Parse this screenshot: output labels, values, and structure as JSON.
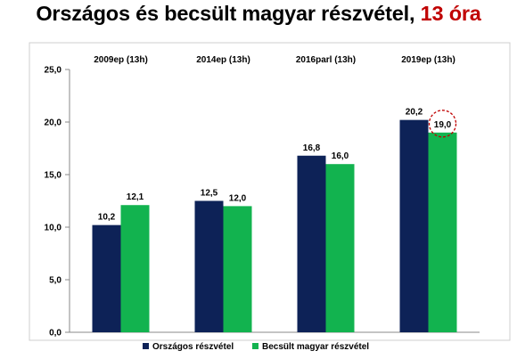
{
  "title": {
    "main": "Országos és becsült magyar részvétel,",
    "highlight": "13 óra"
  },
  "colors": {
    "series_1": "#0d2257",
    "series_2": "#12b34f",
    "highlight_text": "#c00000",
    "highlight_circle": "#c00000",
    "axis": "#888888",
    "frame": "#cfcfcf"
  },
  "chart_data": {
    "type": "bar",
    "title": "Országos és becsült magyar részvétel, 13 óra",
    "categories": [
      "2009ep (13h)",
      "2014ep (13h)",
      "2016parl (13h)",
      "2019ep (13h)"
    ],
    "series": [
      {
        "name": "Országos részvétel",
        "values": [
          10.2,
          12.5,
          16.8,
          20.2
        ],
        "labels": [
          "10,2",
          "12,5",
          "16,8",
          "20,2"
        ]
      },
      {
        "name": "Becsült magyar részvétel",
        "values": [
          12.1,
          12.0,
          16.0,
          19.0
        ],
        "labels": [
          "12,1",
          "12,0",
          "16,0",
          "19,0"
        ]
      }
    ],
    "ylim": [
      0,
      25
    ],
    "yticks": [
      0,
      5,
      10,
      15,
      20,
      25
    ],
    "ytick_labels": [
      "0,0",
      "5,0",
      "10,0",
      "15,0",
      "20,0",
      "25,0"
    ],
    "category_labels_position": "top",
    "legend_position": "bottom",
    "grid": false,
    "highlighted_point": {
      "series": 1,
      "category": 3
    }
  }
}
